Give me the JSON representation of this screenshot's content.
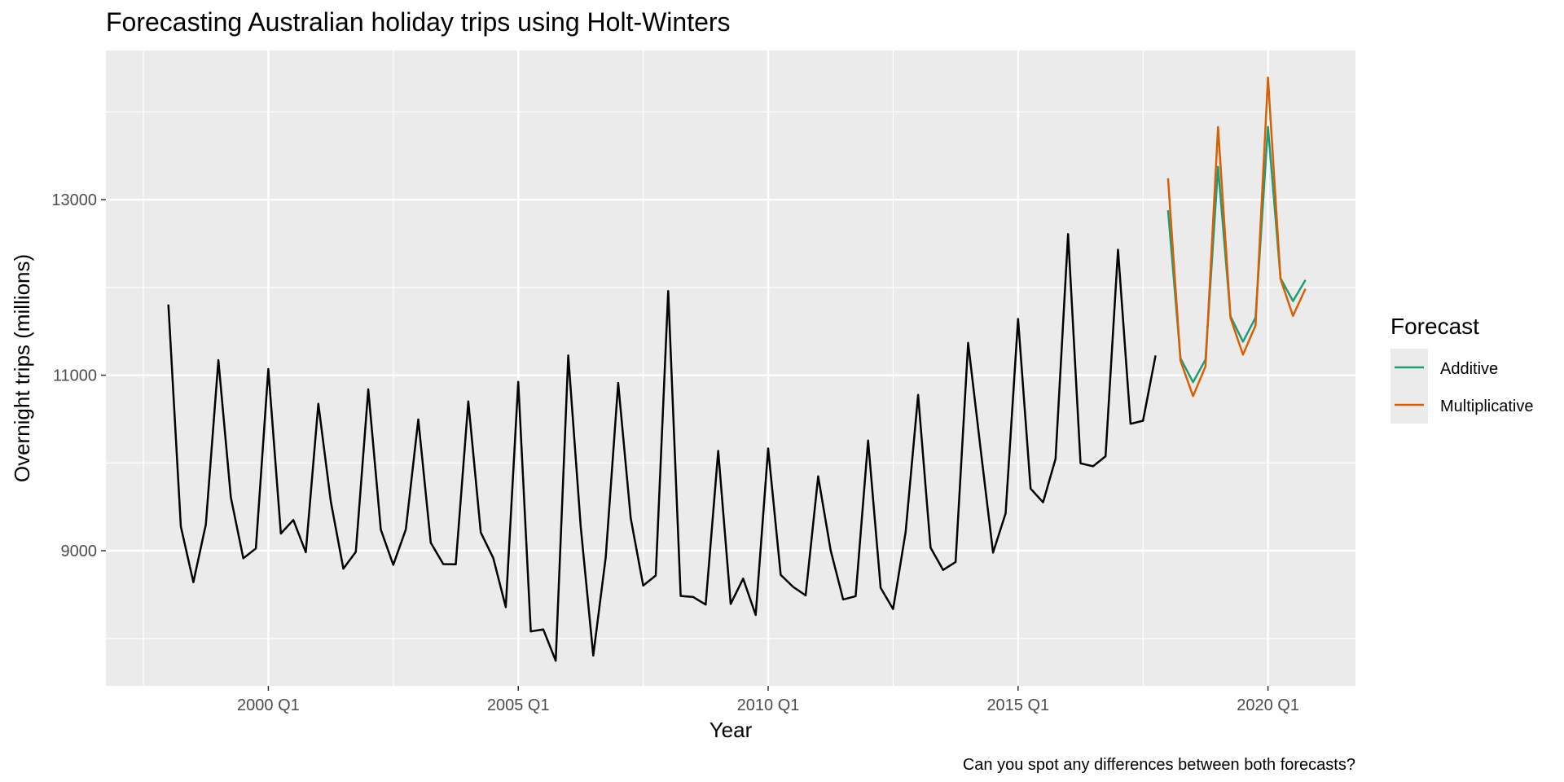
{
  "chart_data": {
    "type": "line",
    "title": "Forecasting Australian holiday trips using Holt-Winters",
    "xlabel": "Year",
    "ylabel": "Overnight trips (millions)",
    "caption": "Can you spot any differences between both forecasts?",
    "x_ticks": [
      "2000 Q1",
      "2005 Q1",
      "2010 Q1",
      "2015 Q1",
      "2020 Q1"
    ],
    "y_ticks": [
      9000,
      11000,
      13000
    ],
    "xlim": [
      "1996 Q4",
      "2021 Q4"
    ],
    "ylim": [
      7460,
      14700
    ],
    "grid": true,
    "legend": {
      "title": "Forecast",
      "position": "right",
      "entries": [
        {
          "name": "Additive",
          "color": "#1b9e77"
        },
        {
          "name": "Multiplicative",
          "color": "#d95f02"
        }
      ]
    },
    "observed": {
      "color": "#000000",
      "start": "1998 Q1",
      "values": [
        11806,
        9276,
        8642,
        9300,
        11172,
        9608,
        8914,
        9026,
        11071,
        9196,
        9351,
        8983,
        10675,
        9561,
        8796,
        8987,
        10839,
        9240,
        8839,
        9243,
        10496,
        9091,
        8848,
        8845,
        10702,
        9208,
        8918,
        8358,
        10924,
        8080,
        8104,
        7746,
        11225,
        9275,
        7805,
        8925,
        10912,
        9371,
        8603,
        8718,
        11960,
        8485,
        8473,
        8386,
        10138,
        8394,
        8682,
        8268,
        10166,
        8725,
        8588,
        8491,
        9847,
        9006,
        8445,
        8482,
        10256,
        8578,
        8335,
        9215,
        10776,
        9034,
        8781,
        8872,
        11369,
        10159,
        8979,
        9425,
        11642,
        9708,
        9551,
        10046,
        12608,
        9996,
        9962,
        10077,
        12431,
        10446,
        10481,
        11225
      ]
    },
    "series": [
      {
        "name": "Additive",
        "color": "#1b9e77",
        "start": "2018 Q1",
        "values": [
          12880,
          11193,
          10920,
          11177,
          13375,
          11671,
          11383,
          11656,
          13829,
          12106,
          11845,
          12085
        ]
      },
      {
        "name": "Multiplicative",
        "color": "#d95f02",
        "start": "2018 Q1",
        "values": [
          13245,
          11165,
          10762,
          11100,
          13828,
          11654,
          11234,
          11566,
          14393,
          12096,
          11676,
          11985
        ]
      }
    ]
  }
}
